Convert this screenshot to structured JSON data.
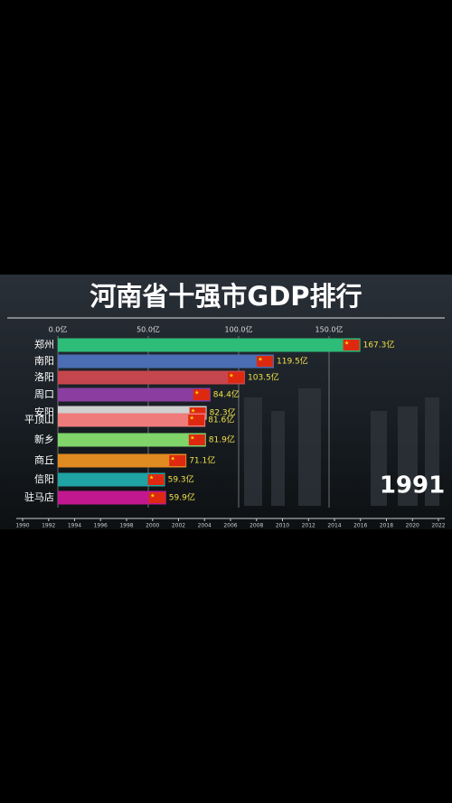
{
  "chart_data": {
    "type": "bar",
    "orientation": "horizontal",
    "title": "河南省十强市GDP排行",
    "categories": [
      "郑州",
      "南阳",
      "洛阳",
      "周口",
      "安阳",
      "平顶山",
      "新乡",
      "商丘",
      "信阳",
      "驻马店"
    ],
    "values": [
      167.3,
      119.5,
      103.5,
      84.4,
      82.3,
      81.6,
      81.9,
      71.1,
      59.3,
      59.9
    ],
    "value_labels": [
      "167.3亿",
      "119.5亿",
      "103.5亿",
      "84.4亿",
      "82.3亿",
      "81.6亿",
      "81.9亿",
      "71.1亿",
      "59.3亿",
      "59.9亿"
    ],
    "colors": [
      "#2dbd78",
      "#4a6db3",
      "#c6464e",
      "#8b3ea0",
      "#cfcfcf",
      "#ef7b7b",
      "#80d46a",
      "#e08a22",
      "#1fa3a3",
      "#c2188f"
    ],
    "xlim": [
      0,
      200
    ],
    "xticks": [
      {
        "value": 0,
        "label": "0.0亿"
      },
      {
        "value": 50,
        "label": "50.0亿"
      },
      {
        "value": 100,
        "label": "100.0亿"
      },
      {
        "value": 150,
        "label": "150.0亿"
      }
    ],
    "grid": true,
    "year": "1991",
    "timeline": {
      "xlim": [
        1990,
        2022
      ],
      "xticks": [
        1990,
        1992,
        1994,
        1996,
        1998,
        2000,
        2002,
        2004,
        2006,
        2008,
        2010,
        2012,
        2014,
        2016,
        2018,
        2020,
        2022
      ]
    }
  }
}
